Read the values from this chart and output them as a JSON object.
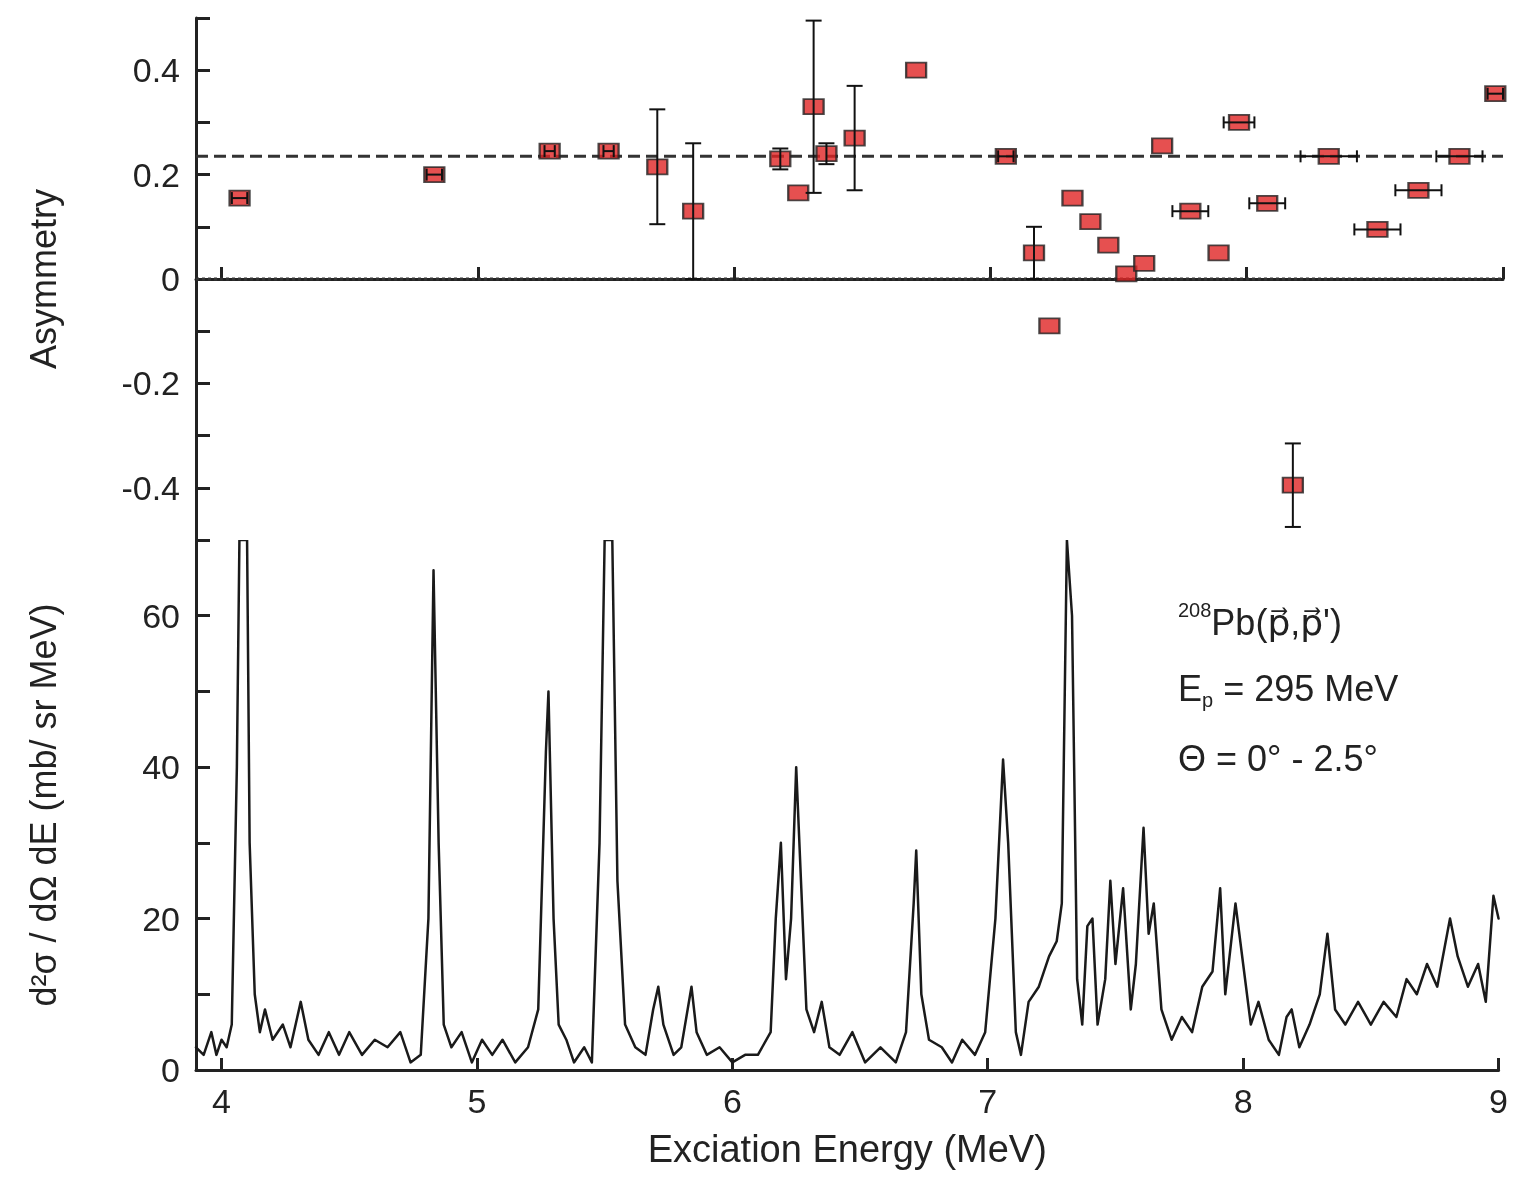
{
  "chart_data": [
    {
      "type": "scatter",
      "ylabel": "Asymmetry",
      "xlim": [
        3.9,
        9
      ],
      "xticks": [
        4,
        5,
        6,
        7,
        8,
        9
      ],
      "ylim": [
        -0.5,
        0.5
      ],
      "yticks": [
        {
          "value": -0.5,
          "label": null
        },
        -0.4,
        {
          "value": -0.3,
          "label": null
        },
        -0.2,
        {
          "value": -0.1,
          "label": null
        },
        0,
        {
          "value": 0.1,
          "label": null
        },
        0.2,
        {
          "value": 0.3,
          "label": null
        },
        0.4,
        {
          "value": 0.5,
          "label": null
        }
      ],
      "tick_labels": "y",
      "marker": "square",
      "grid": false,
      "legend": false,
      "x": [
        4.07,
        4.83,
        5.28,
        5.51,
        5.7,
        5.84,
        6.18,
        6.25,
        6.31,
        6.36,
        6.47,
        6.71,
        7.06,
        7.17,
        7.23,
        7.32,
        7.39,
        7.46,
        7.53,
        7.6,
        7.67,
        7.78,
        7.89,
        7.97,
        8.08,
        8.18,
        8.32,
        8.51,
        8.67,
        8.83,
        8.97
      ],
      "series": [
        {
          "color": "#e02424",
          "values": [
            0.155,
            0.2,
            0.245,
            0.245,
            0.215,
            0.13,
            0.23,
            0.165,
            0.33,
            0.24,
            0.27,
            0.4,
            0.235,
            0.05,
            -0.09,
            0.155,
            0.11,
            0.065,
            0.01,
            0.03,
            0.255,
            0.13,
            0.05,
            0.3,
            0.145,
            -0.395,
            0.235,
            0.095,
            0.17,
            0.235,
            0.355
          ],
          "errors": [
            null,
            null,
            null,
            null,
            0.11,
            0.13,
            0.02,
            null,
            0.165,
            0.02,
            0.1,
            null,
            null,
            0.05,
            null,
            null,
            null,
            null,
            null,
            null,
            null,
            null,
            null,
            null,
            null,
            0.08,
            null,
            null,
            null,
            null,
            null
          ],
          "xerrors": [
            0.03,
            0.03,
            0.02,
            0.02,
            null,
            null,
            null,
            null,
            null,
            null,
            null,
            null,
            0.03,
            null,
            null,
            null,
            null,
            null,
            null,
            null,
            null,
            0.07,
            null,
            0.06,
            0.07,
            null,
            0.11,
            0.09,
            0.09,
            0.09,
            0.03
          ]
        }
      ],
      "ref_lines": [
        {
          "axis": "y",
          "value": 0.235,
          "line_style": "dashed",
          "color": "#333333"
        },
        {
          "axis": "y",
          "value": 0,
          "line_style": "dotted",
          "color": "#333333"
        }
      ]
    },
    {
      "type": "line",
      "xlabel": "Exciation Energy (MeV)",
      "ylabel": "d²σ / dΩ dE (mb/ sr MeV)",
      "xlim": [
        3.9,
        9
      ],
      "xticks": [
        4,
        5,
        6,
        7,
        8,
        9
      ],
      "ylim": [
        0,
        70
      ],
      "yticks": [
        0,
        {
          "value": 10,
          "label": null
        },
        20,
        {
          "value": 30,
          "label": null
        },
        40,
        {
          "value": 50,
          "label": null
        },
        60,
        {
          "value": 70,
          "label": null
        }
      ],
      "marker": "none",
      "grid": false,
      "legend": false,
      "annotations": [
        "$^{208}$Pb(p⃗,p⃗')",
        "E$_{p}$ = 295 MeV",
        "Θ = 0° - 2.5°"
      ],
      "x": [
        3.9,
        3.93,
        3.96,
        3.98,
        4.0,
        4.02,
        4.04,
        4.06,
        4.07,
        4.1,
        4.11,
        4.13,
        4.15,
        4.17,
        4.2,
        4.24,
        4.27,
        4.31,
        4.34,
        4.38,
        4.42,
        4.46,
        4.5,
        4.55,
        4.6,
        4.65,
        4.7,
        4.74,
        4.78,
        4.81,
        4.83,
        4.85,
        4.87,
        4.9,
        4.94,
        4.98,
        5.02,
        5.06,
        5.1,
        5.15,
        5.2,
        5.24,
        5.27,
        5.28,
        5.3,
        5.32,
        5.35,
        5.38,
        5.42,
        5.45,
        5.48,
        5.5,
        5.53,
        5.55,
        5.58,
        5.62,
        5.66,
        5.69,
        5.71,
        5.73,
        5.77,
        5.8,
        5.84,
        5.86,
        5.9,
        5.95,
        6.0,
        6.05,
        6.1,
        6.15,
        6.17,
        6.19,
        6.21,
        6.23,
        6.25,
        6.27,
        6.29,
        6.32,
        6.35,
        6.38,
        6.42,
        6.47,
        6.52,
        6.58,
        6.64,
        6.68,
        6.71,
        6.72,
        6.74,
        6.77,
        6.82,
        6.86,
        6.9,
        6.95,
        6.99,
        7.03,
        7.06,
        7.08,
        7.11,
        7.13,
        7.16,
        7.2,
        7.24,
        7.27,
        7.29,
        7.31,
        7.33,
        7.35,
        7.37,
        7.39,
        7.41,
        7.43,
        7.46,
        7.48,
        7.5,
        7.53,
        7.56,
        7.58,
        7.61,
        7.63,
        7.65,
        7.68,
        7.72,
        7.76,
        7.8,
        7.84,
        7.88,
        7.91,
        7.93,
        7.95,
        7.97,
        8.0,
        8.03,
        8.06,
        8.1,
        8.14,
        8.17,
        8.19,
        8.22,
        8.26,
        8.3,
        8.33,
        8.36,
        8.4,
        8.45,
        8.5,
        8.55,
        8.6,
        8.64,
        8.68,
        8.72,
        8.76,
        8.81,
        8.84,
        8.88,
        8.92,
        8.95,
        8.98,
        9.0
      ],
      "series": [
        {
          "color": "#1a1a1a",
          "values": [
            3,
            2,
            5,
            2,
            4,
            3,
            6,
            40,
            70,
            70,
            30,
            10,
            5,
            8,
            4,
            6,
            3,
            9,
            4,
            2,
            5,
            2,
            5,
            2,
            4,
            3,
            5,
            1,
            2,
            20,
            66,
            30,
            6,
            3,
            5,
            1,
            4,
            2,
            4,
            1,
            3,
            8,
            42,
            50,
            20,
            6,
            4,
            1,
            3,
            1,
            30,
            70,
            70,
            25,
            6,
            3,
            2,
            8,
            11,
            6,
            2,
            3,
            11,
            5,
            2,
            3,
            1,
            2,
            2,
            5,
            20,
            30,
            12,
            20,
            40,
            24,
            8,
            5,
            9,
            3,
            2,
            5,
            1,
            3,
            1,
            5,
            22,
            29,
            10,
            4,
            3,
            1,
            4,
            2,
            5,
            20,
            41,
            30,
            5,
            2,
            9,
            11,
            15,
            17,
            22,
            70,
            60,
            12,
            6,
            19,
            20,
            6,
            12,
            25,
            14,
            24,
            8,
            14,
            32,
            18,
            22,
            8,
            4,
            7,
            5,
            11,
            13,
            24,
            10,
            16,
            22,
            14,
            6,
            9,
            4,
            2,
            7,
            8,
            3,
            6,
            10,
            18,
            8,
            6,
            9,
            6,
            9,
            7,
            12,
            10,
            14,
            11,
            20,
            15,
            11,
            14,
            9,
            23,
            20
          ]
        }
      ]
    }
  ]
}
